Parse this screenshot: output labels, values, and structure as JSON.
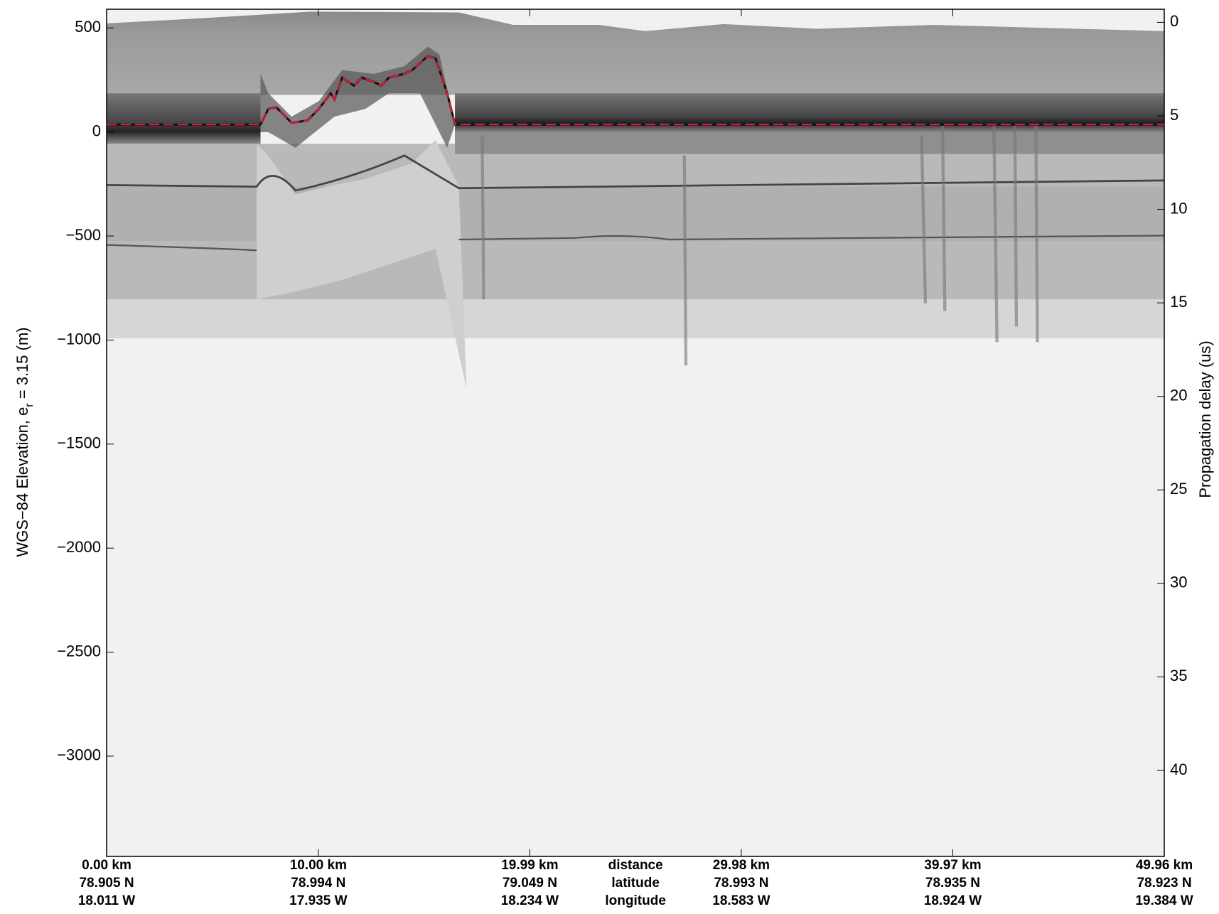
{
  "chart_data": {
    "type": "line",
    "ylabel": {
      "text": "WGS−84 Elevation, e",
      "subscript": "r",
      "suffix": " = 3.15 (m)"
    },
    "y2label": "Propagation delay (us)",
    "xlim": [
      0,
      49.96
    ],
    "xticks": [
      {
        "value": 0,
        "label": "0.00 km"
      },
      {
        "value": 10,
        "label": "10.00 km"
      },
      {
        "value": 19.99,
        "label": "19.99 km"
      },
      {
        "value": 29.98,
        "label": "29.98 km"
      },
      {
        "value": 39.97,
        "label": "39.97 km"
      },
      {
        "value": 49.96,
        "label": "49.96 km"
      }
    ],
    "latitudes": [
      "78.905 N",
      "78.994 N",
      "79.049 N",
      "78.993 N",
      "78.935 N",
      "78.923 N"
    ],
    "longitudes": [
      "18.011 W",
      "17.935 W",
      "18.234 W",
      "18.583 W",
      "18.924 W",
      "19.384 W"
    ],
    "row_labels": [
      "distance",
      "latitude",
      "longitude"
    ],
    "ylim": [
      -3482,
      590
    ],
    "yticks": [
      500,
      0,
      {
        "value": -500,
        "label": "−500"
      },
      {
        "value": -1000,
        "label": "−1000"
      },
      {
        "value": -1500,
        "label": "−1500"
      },
      {
        "value": -2000,
        "label": "−2000"
      },
      {
        "value": -2500,
        "label": "−2500"
      },
      {
        "value": -3000,
        "label": "−3000"
      }
    ],
    "y2lim": [
      -0.7,
      44.6
    ],
    "y2ticks": [
      0,
      5,
      10,
      15,
      20,
      25,
      30,
      35,
      40
    ],
    "x": [
      0,
      7.27,
      7.64,
      8.01,
      8.74,
      9.48,
      10.03,
      10.58,
      10.76,
      11.13,
      11.68,
      12.05,
      12.6,
      12.97,
      13.33,
      14.07,
      14.44,
      15.17,
      15.54,
      16.09,
      16.46,
      49.96
    ],
    "values": [
      36,
      36,
      111,
      119,
      44,
      55,
      111,
      186,
      156,
      261,
      223,
      261,
      242,
      223,
      261,
      280,
      298,
      365,
      354,
      186,
      36,
      36
    ],
    "color": "#e8173a"
  }
}
